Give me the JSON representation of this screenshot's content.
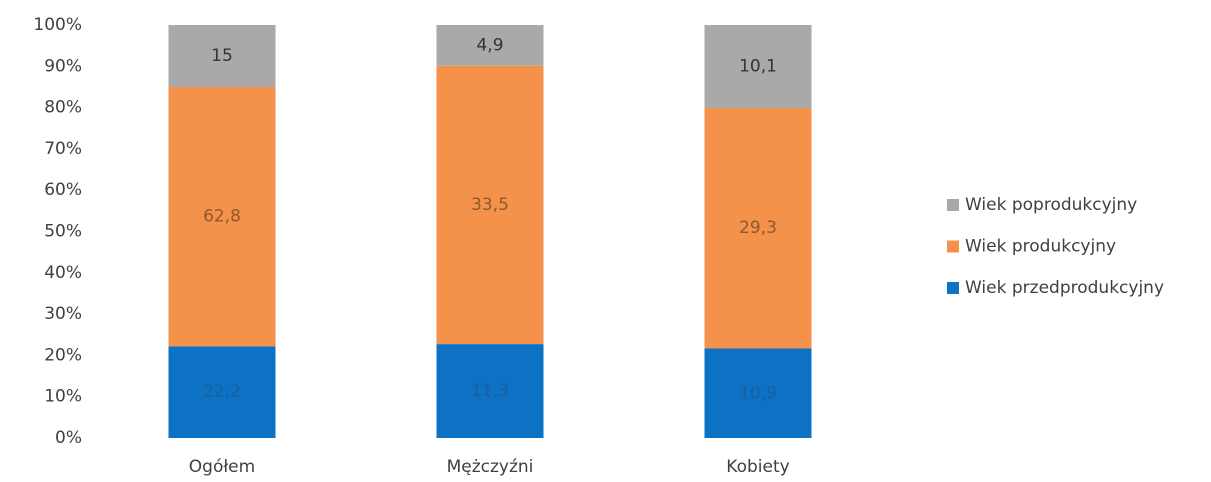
{
  "chart_data": {
    "type": "bar",
    "stacking": "percent",
    "categories": [
      "Ogółem",
      "Mężczyźni",
      "Kobiety"
    ],
    "series": [
      {
        "name": "Wiek przedprodukcyjny",
        "color": "#0e72c4",
        "values": [
          22.2,
          11.3,
          10.9
        ],
        "value_labels": [
          "22,2",
          "11,3",
          "10,9"
        ]
      },
      {
        "name": "Wiek produkcyjny",
        "color": "#f4914a",
        "values": [
          62.8,
          33.5,
          29.3
        ],
        "value_labels": [
          "62,8",
          "33,5",
          "29,3"
        ]
      },
      {
        "name": "Wiek poprodukcyjny",
        "color": "#a9a9a9",
        "values": [
          15,
          4.9,
          10.1
        ],
        "value_labels": [
          "15",
          "4,9",
          "10,1"
        ]
      }
    ],
    "ylim": [
      0,
      100
    ],
    "yticks": [
      {
        "value": 0,
        "label": "0%"
      },
      {
        "value": 10,
        "label": "10%"
      },
      {
        "value": 20,
        "label": "20%"
      },
      {
        "value": 30,
        "label": "30%"
      },
      {
        "value": 40,
        "label": "40%"
      },
      {
        "value": 50,
        "label": "50%"
      },
      {
        "value": 60,
        "label": "60%"
      },
      {
        "value": 70,
        "label": "70%"
      },
      {
        "value": 80,
        "label": "80%"
      },
      {
        "value": 90,
        "label": "90%"
      },
      {
        "value": 100,
        "label": "100%"
      }
    ],
    "legend": "right"
  }
}
